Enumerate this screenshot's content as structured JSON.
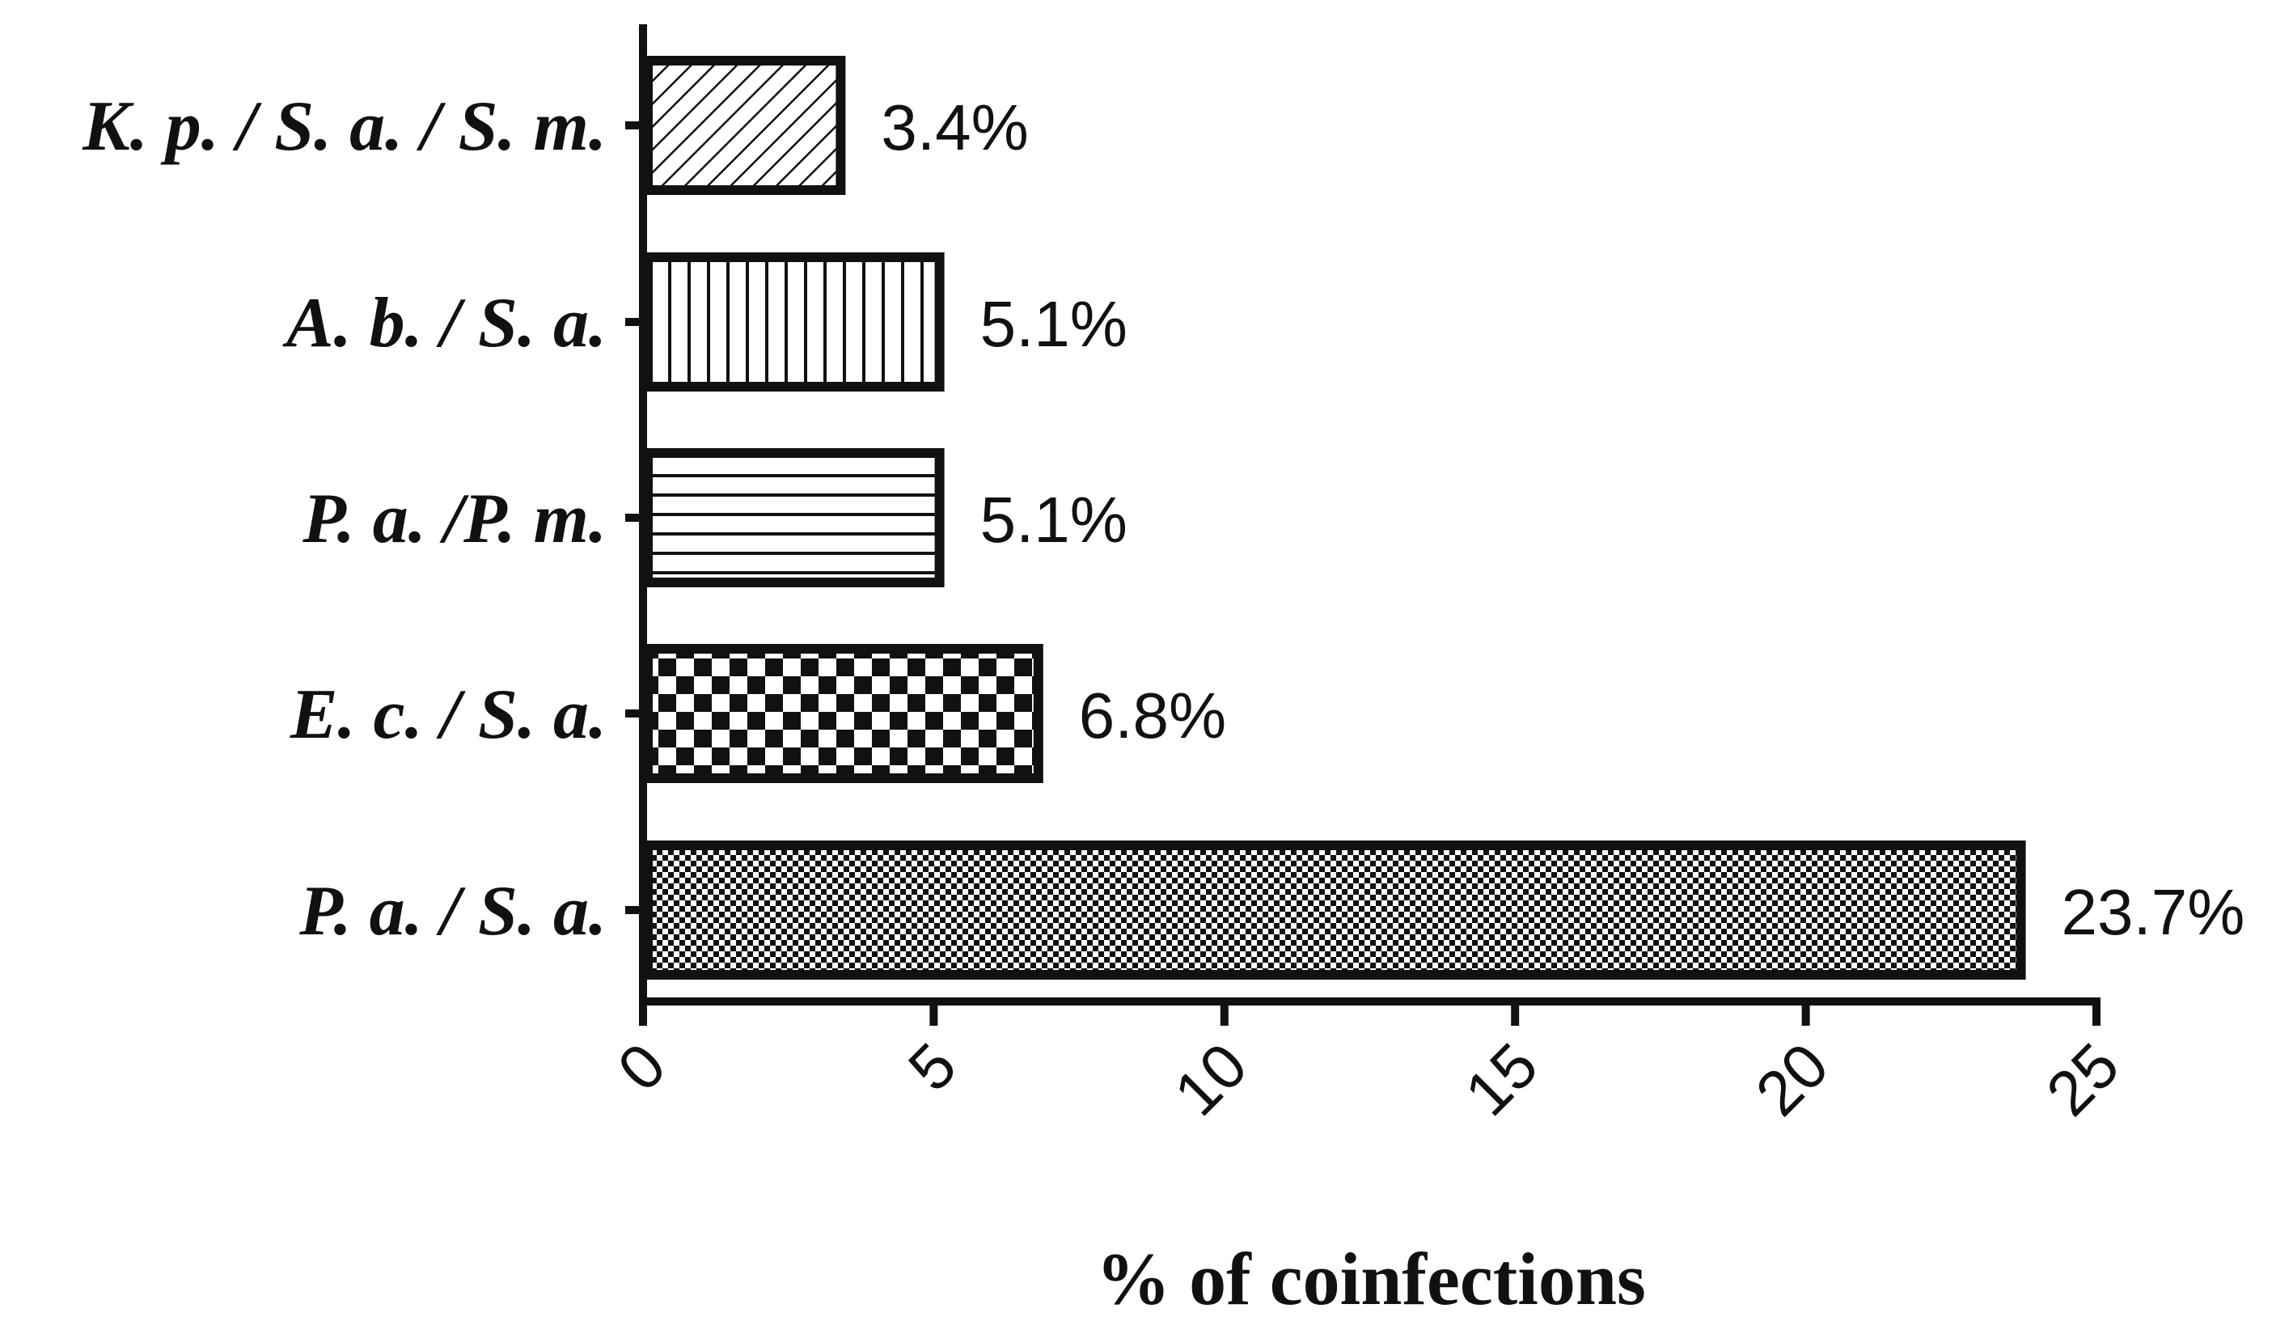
{
  "chart_data": {
    "type": "bar",
    "orientation": "horizontal",
    "categories": [
      "K. p. / S. a. / S. m.",
      "A. b. / S. a.",
      "P. a. /P. m.",
      "E. c. / S. a.",
      "P. a. / S. a."
    ],
    "values": [
      3.4,
      5.1,
      5.1,
      6.8,
      23.7
    ],
    "data_labels": [
      "3.4%",
      "5.1%",
      "5.1%",
      "6.8%",
      "23.7%"
    ],
    "patterns": [
      "diagonal-hatch",
      "vertical-lines",
      "horizontal-lines",
      "large-checker",
      "small-checker"
    ],
    "xlabel": "% of coinfections",
    "ylabel": "",
    "xlim": [
      0,
      25
    ],
    "xticks": [
      0,
      5,
      10,
      15,
      20,
      25
    ],
    "xtick_labels": [
      "0",
      "5",
      "10",
      "15",
      "20",
      "25"
    ],
    "grid": false,
    "colors": {
      "bar_fill": "#ffffff",
      "bar_stroke": "#111111",
      "pattern": "#111111",
      "axis": "#111111"
    }
  }
}
